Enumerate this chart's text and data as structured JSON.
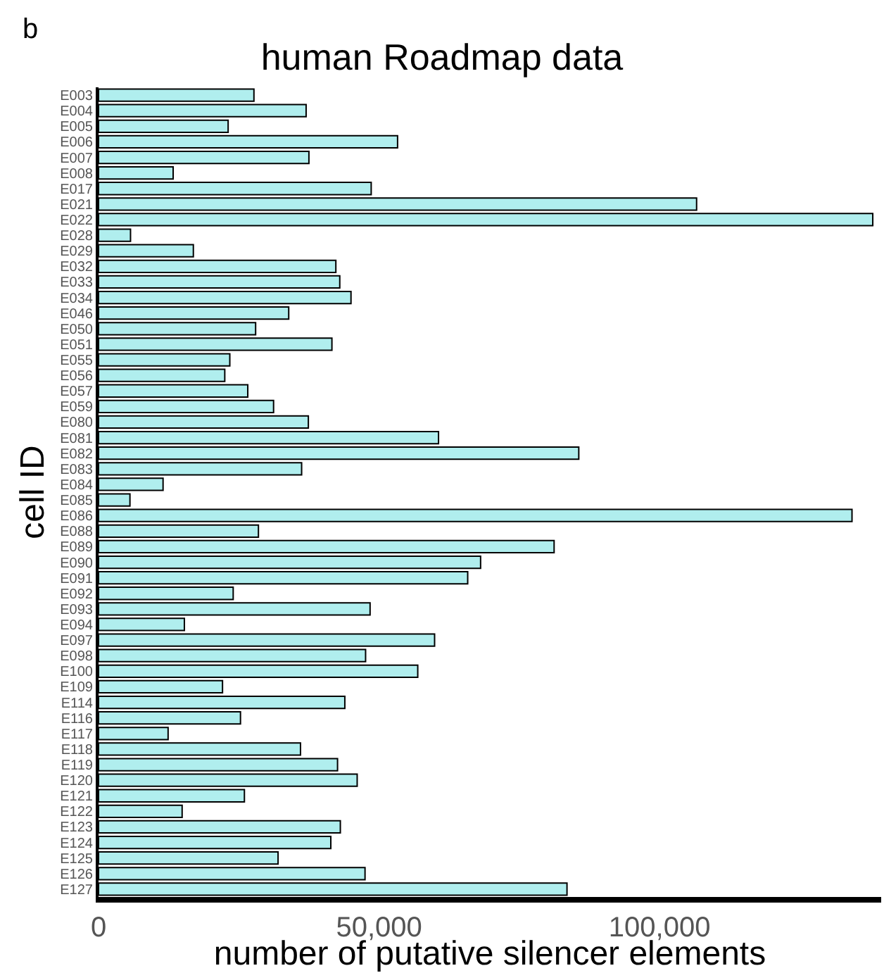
{
  "chart_data": {
    "type": "bar",
    "orientation": "horizontal",
    "title": "human Roadmap data",
    "xlabel": "number of putative silencer elements",
    "ylabel": "cell ID",
    "annotations": [
      "b"
    ],
    "categories": [
      "E003",
      "E004",
      "E005",
      "E006",
      "E007",
      "E008",
      "E017",
      "E021",
      "E022",
      "E028",
      "E029",
      "E032",
      "E033",
      "E034",
      "E046",
      "E050",
      "E051",
      "E055",
      "E056",
      "E057",
      "E059",
      "E080",
      "E081",
      "E082",
      "E083",
      "E084",
      "E085",
      "E086",
      "E088",
      "E089",
      "E090",
      "E091",
      "E092",
      "E093",
      "E094",
      "E097",
      "E098",
      "E100",
      "E109",
      "E114",
      "E116",
      "E117",
      "E118",
      "E119",
      "E120",
      "E121",
      "E122",
      "E123",
      "E124",
      "E125",
      "E126",
      "E127"
    ],
    "values": [
      27700,
      37000,
      23100,
      53300,
      37500,
      13300,
      48600,
      106600,
      138000,
      5700,
      16900,
      42300,
      43000,
      45000,
      33900,
      28000,
      41600,
      23400,
      22500,
      26600,
      31200,
      37400,
      60600,
      85600,
      36200,
      11500,
      5600,
      134300,
      28500,
      81200,
      68100,
      65800,
      24000,
      48400,
      15300,
      59900,
      47600,
      56900,
      22100,
      43900,
      25300,
      12400,
      36000,
      42600,
      46100,
      26000,
      14900,
      43100,
      41400,
      32000,
      47500,
      83500
    ],
    "color": "#b0eeee",
    "xlim": [
      0,
      139500
    ],
    "xticks": [
      {
        "value": 0,
        "label": "0"
      },
      {
        "value": 50000,
        "label": "50,000"
      },
      {
        "value": 100000,
        "label": "100,000"
      }
    ]
  }
}
